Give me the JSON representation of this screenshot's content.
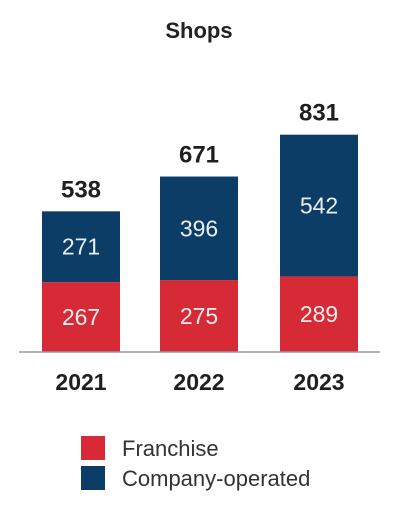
{
  "chart_data": {
    "type": "bar",
    "stacked": true,
    "title": "Shops",
    "categories": [
      "2021",
      "2022",
      "2023"
    ],
    "series": [
      {
        "name": "Franchise",
        "values": [
          267,
          275,
          289
        ],
        "color": "#d62b37"
      },
      {
        "name": "Company-operated",
        "values": [
          271,
          396,
          542
        ],
        "color": "#0b3d66"
      }
    ],
    "totals": [
      538,
      671,
      831
    ],
    "legend_position": "bottom",
    "grid": false,
    "ylim": [
      0,
      900
    ]
  }
}
